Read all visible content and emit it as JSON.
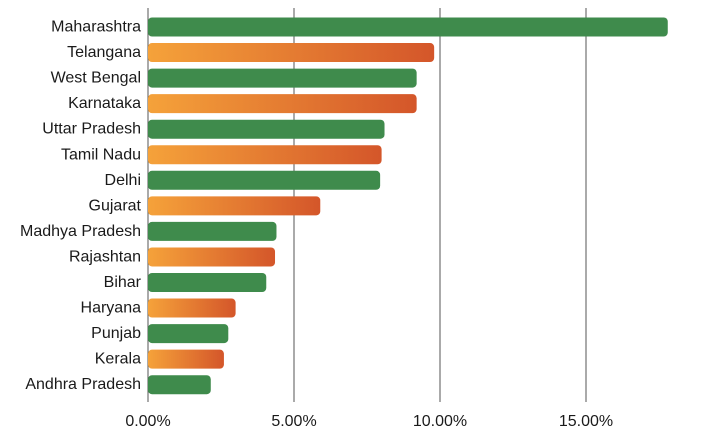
{
  "chart_data": {
    "type": "bar",
    "orientation": "horizontal",
    "title": "",
    "xlabel": "",
    "ylabel": "",
    "categories": [
      "Maharashtra",
      "Telangana",
      "West Bengal",
      "Karnataka",
      "Uttar Pradesh",
      "Tamil Nadu",
      "Delhi",
      "Gujarat",
      "Madhya Pradesh",
      "Rajashtan",
      "Bihar",
      "Haryana",
      "Punjab",
      "Kerala",
      "Andhra Pradesh"
    ],
    "values": [
      17.8,
      9.8,
      9.2,
      9.2,
      8.1,
      8.0,
      7.95,
      5.9,
      4.4,
      4.35,
      4.05,
      3.0,
      2.75,
      2.6,
      2.15
    ],
    "xlim": [
      0,
      19
    ],
    "xticks": [
      0,
      5,
      10,
      15
    ],
    "xtick_labels": [
      "0.00%",
      "5.00%",
      "10.00%",
      "15.00%"
    ],
    "grid": "vertical",
    "bar_style": "alternating green / orange gradient",
    "colors": {
      "green": "#3f8b4c",
      "orange_start": "#f5a23a",
      "orange_end": "#d4562a"
    }
  }
}
